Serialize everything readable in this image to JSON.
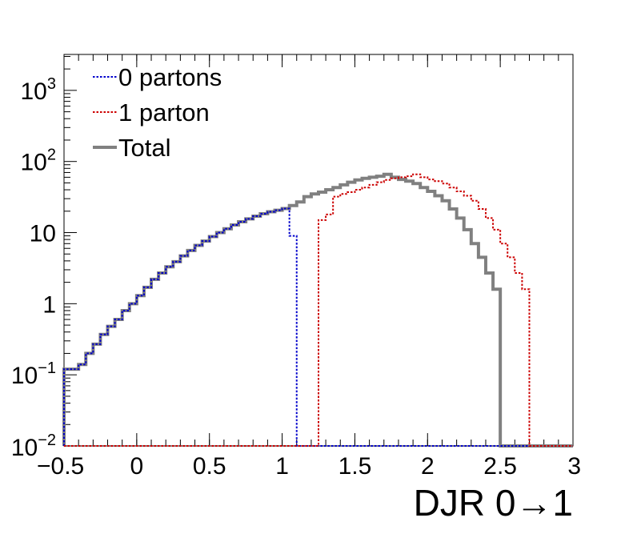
{
  "chart_data": {
    "type": "line",
    "xlabel": "DJR 0→1",
    "yscale": "log",
    "xlim": [
      -0.5,
      3
    ],
    "ylim": [
      0.01,
      3200
    ],
    "bin_width": 0.05,
    "x_ticks": [
      {
        "v": -0.5,
        "label": "−0.5"
      },
      {
        "v": 0,
        "label": "0"
      },
      {
        "v": 0.5,
        "label": "0.5"
      },
      {
        "v": 1,
        "label": "1"
      },
      {
        "v": 1.5,
        "label": "1.5"
      },
      {
        "v": 2,
        "label": "2"
      },
      {
        "v": 2.5,
        "label": "2.5"
      },
      {
        "v": 3,
        "label": "3"
      }
    ],
    "y_ticks": [
      {
        "v": 0.01,
        "base": "10",
        "exp": "−2"
      },
      {
        "v": 0.1,
        "base": "10",
        "exp": "−1"
      },
      {
        "v": 1,
        "base": "1",
        "exp": ""
      },
      {
        "v": 10,
        "base": "10",
        "exp": ""
      },
      {
        "v": 100,
        "base": "10",
        "exp": "2"
      },
      {
        "v": 1000,
        "base": "10",
        "exp": "3"
      }
    ],
    "legend": {
      "placement": "top-left",
      "entries": [
        {
          "label": "0 partons",
          "color": "#0000cc",
          "style": "dotted"
        },
        {
          "label": "1 parton",
          "color": "#cc0000",
          "style": "dotted"
        },
        {
          "label": "Total",
          "color": "#808080",
          "style": "solid"
        }
      ]
    },
    "series": [
      {
        "name": "Total",
        "color": "#808080",
        "x_start": -0.5,
        "values": [
          0.12,
          0.12,
          0.14,
          0.2,
          0.27,
          0.37,
          0.48,
          0.6,
          0.8,
          1.0,
          1.3,
          1.7,
          2.2,
          2.7,
          3.3,
          3.9,
          4.7,
          5.6,
          6.6,
          7.6,
          8.8,
          10.0,
          11.3,
          12.8,
          14.2,
          15.6,
          17.0,
          18.4,
          19.6,
          20.6,
          21.8,
          24.0,
          27.0,
          32.0,
          35.0,
          37.0,
          40.0,
          43.0,
          47.0,
          51.0,
          55.0,
          58.0,
          60.0,
          62.0,
          66.0,
          60.0,
          56.0,
          53.0,
          49.0,
          43.0,
          38.0,
          33.0,
          28.0,
          21.5,
          16.0,
          11.0,
          7.0,
          4.5,
          2.7,
          1.6
        ]
      },
      {
        "name": "0 partons",
        "color": "#0000cc",
        "x_start": -0.5,
        "values": [
          0.12,
          0.12,
          0.14,
          0.2,
          0.27,
          0.37,
          0.48,
          0.6,
          0.8,
          1.0,
          1.3,
          1.7,
          2.2,
          2.7,
          3.3,
          3.9,
          4.7,
          5.6,
          6.6,
          7.6,
          8.8,
          10.0,
          11.3,
          12.8,
          14.2,
          15.6,
          17.0,
          18.4,
          19.6,
          20.6,
          21.8,
          9.0
        ]
      },
      {
        "name": "1 parton",
        "color": "#cc0000",
        "x_start": 1.25,
        "values": [
          15.0,
          18.0,
          32.0,
          35.0,
          37.0,
          40.0,
          43.0,
          47.0,
          51.0,
          55.0,
          58.0,
          60.0,
          62.0,
          66.0,
          60.0,
          56.0,
          53.0,
          49.0,
          43.0,
          38.0,
          33.0,
          28.0,
          21.5,
          16.0,
          11.0,
          7.0,
          4.5,
          2.7,
          1.6
        ]
      }
    ]
  }
}
